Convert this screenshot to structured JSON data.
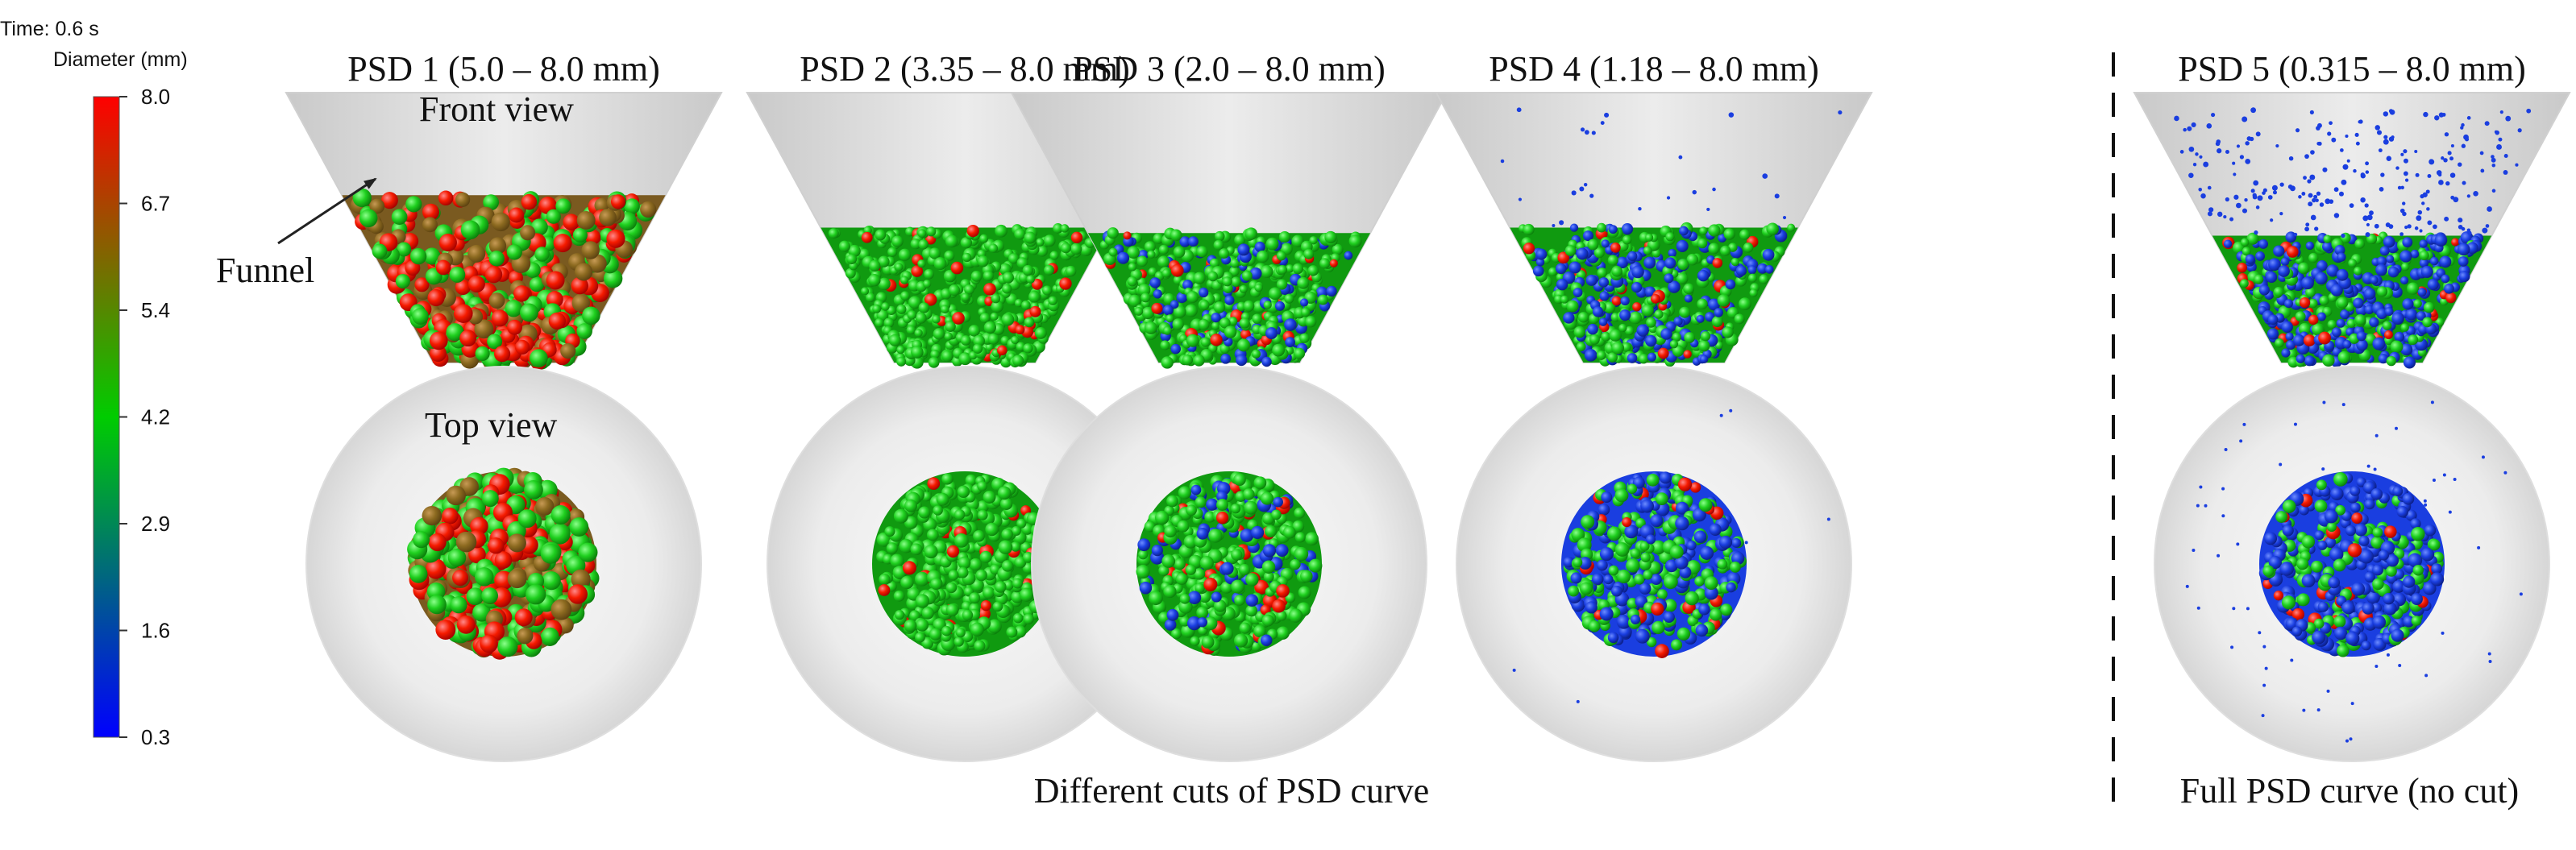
{
  "time_label": "Time: 0.6 s",
  "colorbar": {
    "title": "Diameter (mm)",
    "ticks": [
      "8.0",
      "6.7",
      "5.4",
      "4.2",
      "2.9",
      "1.6",
      "0.3"
    ],
    "colors": [
      "#ff0000",
      "#00cc00",
      "#0000ff"
    ]
  },
  "annotations": {
    "front_view": "Front view",
    "top_view": "Top view",
    "funnel": "Funnel",
    "different_cuts": "Different cuts of PSD curve",
    "full_psd": "Full PSD curve (no cut)"
  },
  "panels": [
    {
      "title": "PSD 1 (5.0 – 8.0 mm)",
      "fill_fraction": 0.62,
      "red_fraction": 0.55,
      "blue_fraction": 0.0,
      "loose_particles": 0
    },
    {
      "title": "PSD 2 (3.35 – 8.0 mm)",
      "fill_fraction": 0.5,
      "red_fraction": 0.05,
      "blue_fraction": 0.0,
      "loose_particles": 0
    },
    {
      "title": "PSD 3 (2.0 – 8.0 mm)",
      "fill_fraction": 0.48,
      "red_fraction": 0.05,
      "blue_fraction": 0.2,
      "loose_particles": 0
    },
    {
      "title": "PSD 4 (1.18 – 8.0 mm)",
      "fill_fraction": 0.5,
      "red_fraction": 0.05,
      "blue_fraction": 0.4,
      "loose_particles": 25
    },
    {
      "title": "PSD 5 (0.315 – 8.0 mm)",
      "fill_fraction": 0.47,
      "red_fraction": 0.05,
      "blue_fraction": 0.6,
      "loose_particles": 220
    }
  ]
}
